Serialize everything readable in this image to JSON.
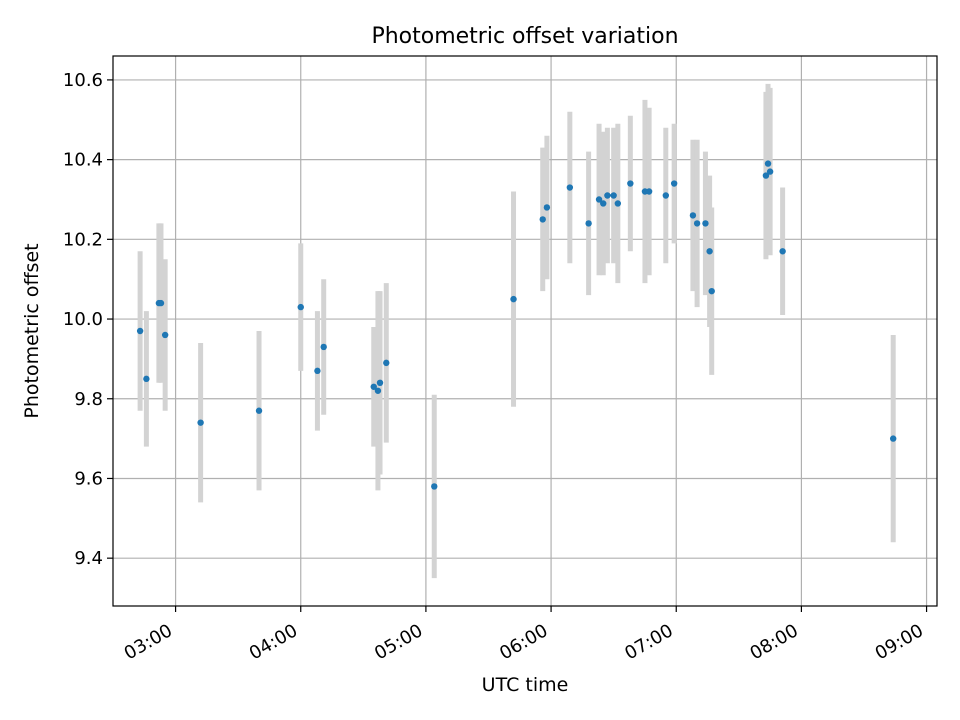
{
  "chart_data": {
    "type": "scatter",
    "title": "Photometric offset variation",
    "xlabel": "UTC time",
    "ylabel": "Photometric offset",
    "xlim": [
      "02:30",
      "09:05"
    ],
    "ylim": [
      9.28,
      10.66
    ],
    "x_ticks": [
      "03:00",
      "04:00",
      "05:00",
      "06:00",
      "07:00",
      "08:00",
      "09:00"
    ],
    "y_ticks": [
      "9.4",
      "9.6",
      "9.8",
      "10.0",
      "10.2",
      "10.4",
      "10.6"
    ],
    "grid": true,
    "errorbar_color": "#d3d3d3",
    "marker_color": "#1f77b4",
    "points": [
      {
        "x": "02:43",
        "y": 9.97,
        "err": 0.2
      },
      {
        "x": "02:46",
        "y": 9.85,
        "err": 0.17
      },
      {
        "x": "02:52",
        "y": 10.04,
        "err": 0.2
      },
      {
        "x": "02:53",
        "y": 10.04,
        "err": 0.2
      },
      {
        "x": "02:55",
        "y": 9.96,
        "err": 0.19
      },
      {
        "x": "03:12",
        "y": 9.74,
        "err": 0.2
      },
      {
        "x": "03:40",
        "y": 9.77,
        "err": 0.2
      },
      {
        "x": "04:00",
        "y": 10.03,
        "err": 0.16
      },
      {
        "x": "04:08",
        "y": 9.87,
        "err": 0.15
      },
      {
        "x": "04:11",
        "y": 9.93,
        "err": 0.17
      },
      {
        "x": "04:35",
        "y": 9.83,
        "err": 0.15
      },
      {
        "x": "04:37",
        "y": 9.82,
        "err": 0.25
      },
      {
        "x": "04:38",
        "y": 9.84,
        "err": 0.23
      },
      {
        "x": "04:41",
        "y": 9.89,
        "err": 0.2
      },
      {
        "x": "05:04",
        "y": 9.58,
        "err": 0.23
      },
      {
        "x": "05:42",
        "y": 10.05,
        "err": 0.27
      },
      {
        "x": "05:56",
        "y": 10.25,
        "err": 0.18
      },
      {
        "x": "05:58",
        "y": 10.28,
        "err": 0.18
      },
      {
        "x": "06:09",
        "y": 10.33,
        "err": 0.19
      },
      {
        "x": "06:18",
        "y": 10.24,
        "err": 0.18
      },
      {
        "x": "06:23",
        "y": 10.3,
        "err": 0.19
      },
      {
        "x": "06:25",
        "y": 10.29,
        "err": 0.18
      },
      {
        "x": "06:27",
        "y": 10.31,
        "err": 0.17
      },
      {
        "x": "06:30",
        "y": 10.31,
        "err": 0.17
      },
      {
        "x": "06:32",
        "y": 10.29,
        "err": 0.2
      },
      {
        "x": "06:38",
        "y": 10.34,
        "err": 0.17
      },
      {
        "x": "06:45",
        "y": 10.32,
        "err": 0.23
      },
      {
        "x": "06:47",
        "y": 10.32,
        "err": 0.21
      },
      {
        "x": "06:55",
        "y": 10.31,
        "err": 0.17
      },
      {
        "x": "06:59",
        "y": 10.34,
        "err": 0.15
      },
      {
        "x": "07:08",
        "y": 10.26,
        "err": 0.19
      },
      {
        "x": "07:10",
        "y": 10.24,
        "err": 0.21
      },
      {
        "x": "07:14",
        "y": 10.24,
        "err": 0.18
      },
      {
        "x": "07:16",
        "y": 10.17,
        "err": 0.19
      },
      {
        "x": "07:17",
        "y": 10.07,
        "err": 0.21
      },
      {
        "x": "07:43",
        "y": 10.36,
        "err": 0.21
      },
      {
        "x": "07:44",
        "y": 10.39,
        "err": 0.2
      },
      {
        "x": "07:45",
        "y": 10.37,
        "err": 0.21
      },
      {
        "x": "07:51",
        "y": 10.17,
        "err": 0.16
      },
      {
        "x": "08:44",
        "y": 9.7,
        "err": 0.26
      }
    ]
  }
}
